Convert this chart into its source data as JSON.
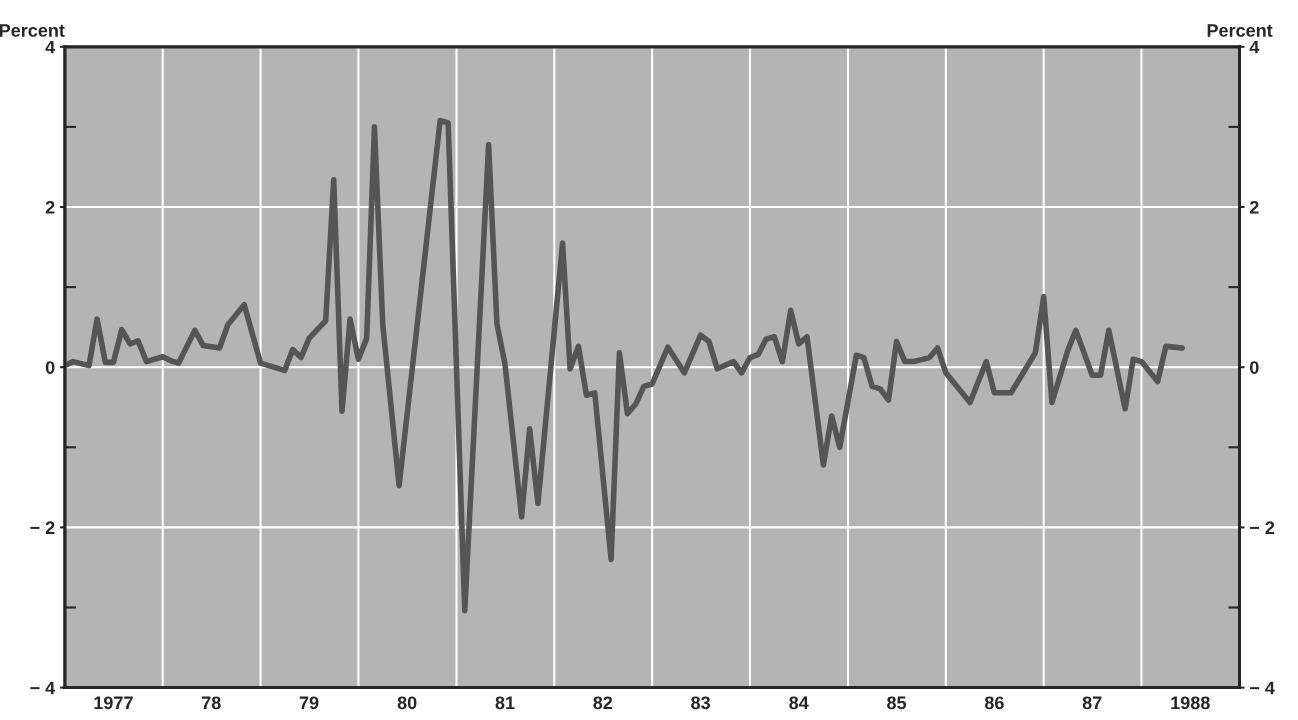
{
  "chart_data": {
    "type": "line",
    "ylabel": "Percent",
    "y2label": "Percent",
    "x": [
      "1977-01",
      "1977-02",
      "1977-04",
      "1977-05",
      "1977-06",
      "1977-07",
      "1977-08",
      "1977-09",
      "1977-10",
      "1977-11",
      "1978-01",
      "1978-02",
      "1978-03",
      "1978-05",
      "1978-06",
      "1978-08",
      "1978-09",
      "1978-11",
      "1979-01",
      "1979-02",
      "1979-04",
      "1979-05",
      "1979-06",
      "1979-07",
      "1979-09",
      "1979-10",
      "1979-11",
      "1979-12",
      "1980-01",
      "1980-02",
      "1980-03",
      "1980-04",
      "1980-06",
      "1980-11",
      "1980-12",
      "1981-02",
      "1981-05",
      "1981-06",
      "1981-07",
      "1981-09",
      "1981-10",
      "1981-11",
      "1982-02",
      "1982-03",
      "1982-04",
      "1982-05",
      "1982-06",
      "1982-08",
      "1982-09",
      "1982-10",
      "1982-11",
      "1982-12",
      "1983-01",
      "1983-03",
      "1983-05",
      "1983-07",
      "1983-08",
      "1983-09",
      "1983-11",
      "1983-12",
      "1984-01",
      "1984-02",
      "1984-03",
      "1984-04",
      "1984-05",
      "1984-06",
      "1984-07",
      "1984-08",
      "1984-10",
      "1984-11",
      "1984-12",
      "1985-02",
      "1985-03",
      "1985-04",
      "1985-05",
      "1985-06",
      "1985-07",
      "1985-08",
      "1985-09",
      "1985-11",
      "1985-12",
      "1986-01",
      "1986-04",
      "1986-06",
      "1986-07",
      "1986-09",
      "1986-12",
      "1987-01",
      "1987-02",
      "1987-04",
      "1987-05",
      "1987-07",
      "1987-08",
      "1987-09",
      "1987-11",
      "1987-12",
      "1988-01",
      "1988-03",
      "1988-04",
      "1988-06"
    ],
    "series": [
      {
        "color": "#555555",
        "values": [
          0.02,
          0.07,
          0.02,
          0.6,
          0.06,
          0.06,
          0.47,
          0.29,
          0.33,
          0.07,
          0.13,
          0.08,
          0.05,
          0.46,
          0.27,
          0.24,
          0.53,
          0.78,
          0.05,
          0.02,
          -0.04,
          0.22,
          0.12,
          0.36,
          0.58,
          2.34,
          -0.55,
          0.6,
          0.1,
          0.36,
          3.0,
          0.53,
          -1.48,
          3.08,
          3.05,
          -3.04,
          2.78,
          0.54,
          0.04,
          -1.87,
          -0.77,
          -1.7,
          1.55,
          -0.02,
          0.26,
          -0.35,
          -0.32,
          -2.4,
          0.18,
          -0.58,
          -0.46,
          -0.24,
          -0.21,
          0.25,
          -0.07,
          0.4,
          0.32,
          -0.02,
          0.07,
          -0.07,
          0.12,
          0.16,
          0.35,
          0.38,
          0.07,
          0.71,
          0.29,
          0.38,
          -1.22,
          -0.61,
          -1.0,
          0.15,
          0.12,
          -0.24,
          -0.27,
          -0.41,
          0.32,
          0.07,
          0.07,
          0.12,
          0.24,
          -0.07,
          -0.44,
          0.07,
          -0.32,
          -0.32,
          0.18,
          0.88,
          -0.44,
          0.21,
          0.46,
          -0.1,
          -0.1,
          0.46,
          -0.52,
          0.1,
          0.07,
          -0.18,
          0.26,
          0.24
        ]
      }
    ],
    "xlim": [
      "1977",
      "1989"
    ],
    "xticks": [
      {
        "value": "1978",
        "label": null
      },
      {
        "value": "1979",
        "label": null
      },
      {
        "value": "1980",
        "label": null
      },
      {
        "value": "1981",
        "label": null
      },
      {
        "value": "1982",
        "label": null
      },
      {
        "value": "1983",
        "label": null
      },
      {
        "value": "1984",
        "label": null
      },
      {
        "value": "1985",
        "label": null
      },
      {
        "value": "1986",
        "label": null
      },
      {
        "value": "1987",
        "label": null
      },
      {
        "value": "1988",
        "label": null
      },
      {
        "value": "1977-07",
        "label": "1977"
      },
      {
        "value": "1978-07",
        "label": "78"
      },
      {
        "value": "1979-07",
        "label": "79"
      },
      {
        "value": "1980-07",
        "label": "80"
      },
      {
        "value": "1981-07",
        "label": "81"
      },
      {
        "value": "1982-07",
        "label": "82"
      },
      {
        "value": "1983-07",
        "label": "83"
      },
      {
        "value": "1984-07",
        "label": "84"
      },
      {
        "value": "1985-07",
        "label": "85"
      },
      {
        "value": "1986-07",
        "label": "86"
      },
      {
        "value": "1987-07",
        "label": "87"
      },
      {
        "value": "1988-07",
        "label": "1988"
      }
    ],
    "ylim": [
      -4,
      4
    ],
    "yticks": [
      {
        "value": -4,
        "label": "− 4"
      },
      {
        "value": -3,
        "label": null
      },
      {
        "value": -2,
        "label": "− 2"
      },
      {
        "value": -1,
        "label": null
      },
      0,
      {
        "value": 1,
        "label": null
      },
      2,
      {
        "value": 3,
        "label": null
      },
      4
    ],
    "y2lim": [
      -4,
      4
    ],
    "y2ticks": [
      {
        "value": -4,
        "label": "− 4"
      },
      {
        "value": -3,
        "label": null
      },
      {
        "value": -2,
        "label": "− 2"
      },
      {
        "value": -1,
        "label": null
      },
      0,
      {
        "value": 1,
        "label": null
      },
      2,
      {
        "value": 3,
        "label": null
      },
      4
    ],
    "grid": true,
    "line_style": "solid",
    "marker": "none"
  }
}
